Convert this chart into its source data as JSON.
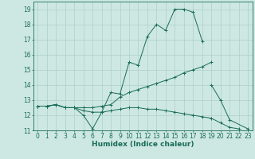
{
  "xlabel": "Humidex (Indice chaleur)",
  "x_values": [
    0,
    1,
    2,
    3,
    4,
    5,
    6,
    7,
    8,
    9,
    10,
    11,
    12,
    13,
    14,
    15,
    16,
    17,
    18,
    19,
    20,
    21,
    22,
    23
  ],
  "line1": [
    12.6,
    12.6,
    12.7,
    12.5,
    12.5,
    12.0,
    11.1,
    12.2,
    13.5,
    13.4,
    15.5,
    15.3,
    17.2,
    18.0,
    17.6,
    19.0,
    19.0,
    18.8,
    16.9,
    null,
    null,
    null,
    null,
    null
  ],
  "line2": [
    12.6,
    12.6,
    12.7,
    12.5,
    12.5,
    12.5,
    12.5,
    12.6,
    12.7,
    13.2,
    13.5,
    13.7,
    13.9,
    14.1,
    14.3,
    14.5,
    14.8,
    15.0,
    15.2,
    15.5,
    null,
    null,
    null,
    null
  ],
  "line3": [
    12.6,
    12.6,
    12.7,
    12.5,
    12.5,
    12.3,
    12.2,
    12.2,
    12.3,
    12.4,
    12.5,
    12.5,
    12.4,
    12.4,
    12.3,
    12.2,
    12.1,
    12.0,
    11.9,
    11.8,
    11.5,
    11.2,
    11.1,
    null
  ],
  "line4": [
    null,
    null,
    null,
    null,
    null,
    null,
    null,
    null,
    null,
    null,
    null,
    null,
    null,
    null,
    null,
    null,
    null,
    null,
    null,
    14.0,
    13.0,
    11.7,
    null,
    11.1
  ],
  "bg_color": "#cde8e2",
  "line_color": "#1a6b5a",
  "grid_color": "#aecfc8",
  "ylim": [
    11,
    19.5
  ],
  "xlim": [
    -0.5,
    23.5
  ],
  "yticks": [
    11,
    12,
    13,
    14,
    15,
    16,
    17,
    18,
    19
  ],
  "xticks": [
    0,
    1,
    2,
    3,
    4,
    5,
    6,
    7,
    8,
    9,
    10,
    11,
    12,
    13,
    14,
    15,
    16,
    17,
    18,
    19,
    20,
    21,
    22,
    23
  ],
  "tick_fontsize": 5.5,
  "label_fontsize": 6.5
}
